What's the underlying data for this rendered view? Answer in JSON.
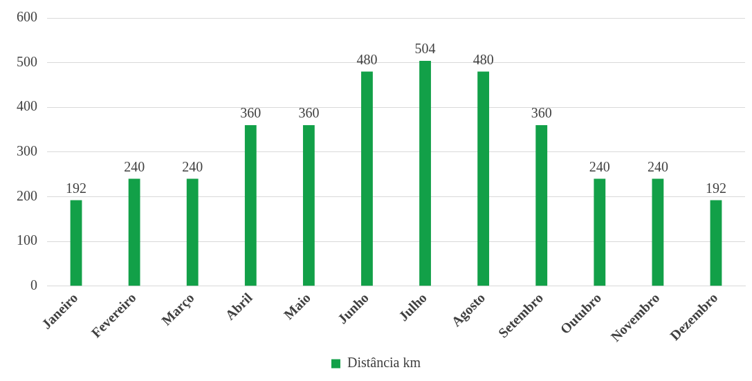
{
  "chart_data": {
    "type": "bar",
    "categories": [
      "Janeiro",
      "Fevereiro",
      "Março",
      "Abril",
      "Maio",
      "Junho",
      "Julho",
      "Agosto",
      "Setembro",
      "Outubro",
      "Novembro",
      "Dezembro"
    ],
    "series": [
      {
        "name": "Distância km",
        "color": "#12a048",
        "values": [
          192,
          240,
          240,
          360,
          360,
          480,
          504,
          480,
          360,
          240,
          240,
          192
        ]
      }
    ],
    "ylim": [
      0,
      600
    ],
    "yticks": [
      0,
      100,
      200,
      300,
      400,
      500,
      600
    ],
    "grid": "y",
    "legend": "bottom",
    "data_labels": true
  }
}
